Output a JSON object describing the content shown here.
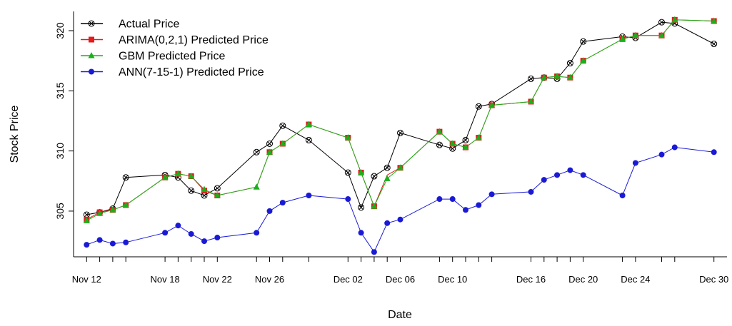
{
  "chart_data": {
    "type": "line",
    "xlabel": "Date",
    "ylabel": "Stock Price",
    "ylim": [
      301.2,
      321.6
    ],
    "xlim": [
      "2019-11-11",
      "2019-12-31"
    ],
    "y_ticks": [
      305,
      310,
      315,
      320
    ],
    "x_ticks": [
      {
        "date": "2019-11-12",
        "label": "Nov 12"
      },
      {
        "date": "2019-11-18",
        "label": "Nov 18"
      },
      {
        "date": "2019-11-22",
        "label": "Nov 22"
      },
      {
        "date": "2019-11-26",
        "label": "Nov 26"
      },
      {
        "date": "2019-12-02",
        "label": "Dec 02"
      },
      {
        "date": "2019-12-06",
        "label": "Dec 06"
      },
      {
        "date": "2019-12-10",
        "label": "Dec 10"
      },
      {
        "date": "2019-12-16",
        "label": "Dec 16"
      },
      {
        "date": "2019-12-20",
        "label": "Dec 20"
      },
      {
        "date": "2019-12-24",
        "label": "Dec 24"
      },
      {
        "date": "2019-12-30",
        "label": "Dec 30"
      }
    ],
    "x": [
      "2019-11-12",
      "2019-11-13",
      "2019-11-14",
      "2019-11-15",
      "2019-11-18",
      "2019-11-19",
      "2019-11-20",
      "2019-11-21",
      "2019-11-22",
      "2019-11-25",
      "2019-11-26",
      "2019-11-27",
      "2019-11-29",
      "2019-12-02",
      "2019-12-03",
      "2019-12-04",
      "2019-12-05",
      "2019-12-06",
      "2019-12-09",
      "2019-12-10",
      "2019-12-11",
      "2019-12-12",
      "2019-12-13",
      "2019-12-16",
      "2019-12-17",
      "2019-12-18",
      "2019-12-19",
      "2019-12-20",
      "2019-12-23",
      "2019-12-24",
      "2019-12-26",
      "2019-12-27",
      "2019-12-30"
    ],
    "series": [
      {
        "name": "Actual Price",
        "color": "#000000",
        "marker": "circle-x",
        "values": [
          304.7,
          304.9,
          305.2,
          307.8,
          308.0,
          307.8,
          306.7,
          306.3,
          306.9,
          309.9,
          310.6,
          312.1,
          310.9,
          308.2,
          305.3,
          307.9,
          308.6,
          311.5,
          310.5,
          310.2,
          310.9,
          313.7,
          313.9,
          316.0,
          316.1,
          316.0,
          317.3,
          319.1,
          319.5,
          319.4,
          320.7,
          320.6,
          318.9
        ],
        "marker_indices": [
          0,
          1,
          2,
          3,
          4,
          5,
          6,
          7,
          8,
          9,
          10,
          11,
          12,
          13,
          14,
          15,
          16,
          17,
          18,
          19,
          20,
          21,
          22,
          23,
          24,
          25,
          26,
          27,
          28,
          29,
          30,
          31,
          32
        ]
      },
      {
        "name": "ARIMA(0,2,1) Predicted Price",
        "color": "#e41a1c",
        "marker": "square",
        "values": [
          304.3,
          304.9,
          305.1,
          305.5,
          307.8,
          308.1,
          307.9,
          306.7,
          306.3,
          307.0,
          309.9,
          310.6,
          312.2,
          311.1,
          308.2,
          305.4,
          308.0,
          308.6,
          311.6,
          310.6,
          310.3,
          311.1,
          313.8,
          314.1,
          316.1,
          316.2,
          316.1,
          317.5,
          319.3,
          319.6,
          319.6,
          320.9,
          320.8
        ],
        "marker_indices": [
          0,
          1,
          2,
          3,
          4,
          5,
          6,
          7,
          8,
          10,
          11,
          12,
          13,
          14,
          15,
          17,
          18,
          19,
          20,
          21,
          22,
          23,
          24,
          25,
          26,
          27,
          28,
          29,
          30,
          31,
          32
        ]
      },
      {
        "name": "GBM Predicted Price",
        "color": "#1ab01a",
        "marker": "triangle",
        "values": [
          304.2,
          304.8,
          305.1,
          305.5,
          307.8,
          308.1,
          307.9,
          306.8,
          306.3,
          307.0,
          309.9,
          310.6,
          312.2,
          311.1,
          308.2,
          305.4,
          307.7,
          308.6,
          311.6,
          310.6,
          310.3,
          311.1,
          313.8,
          314.1,
          316.1,
          316.2,
          316.1,
          317.5,
          319.3,
          319.6,
          319.6,
          320.9,
          320.8
        ],
        "marker_indices": [
          0,
          1,
          2,
          3,
          4,
          5,
          6,
          7,
          8,
          9,
          10,
          11,
          12,
          13,
          14,
          15,
          16,
          17,
          18,
          19,
          20,
          21,
          22,
          23,
          24,
          25,
          26,
          27,
          28,
          29,
          30,
          31,
          32
        ]
      },
      {
        "name": "ANN(7-15-1) Predicted Price",
        "color": "#1a1ad6",
        "marker": "circle",
        "values": [
          302.2,
          302.6,
          302.3,
          302.4,
          303.2,
          303.8,
          303.1,
          302.5,
          302.8,
          303.2,
          305.0,
          305.7,
          306.3,
          306.0,
          303.2,
          301.6,
          304.0,
          304.3,
          306.0,
          306.0,
          305.1,
          305.5,
          306.4,
          306.6,
          307.6,
          308.0,
          308.4,
          308.0,
          306.3,
          309.0,
          309.7,
          310.3,
          309.9
        ],
        "marker_indices": [
          0,
          1,
          2,
          3,
          4,
          5,
          6,
          7,
          8,
          9,
          10,
          11,
          12,
          13,
          14,
          15,
          16,
          17,
          18,
          19,
          20,
          21,
          22,
          23,
          24,
          25,
          26,
          27,
          28,
          29,
          30,
          31,
          32
        ]
      }
    ],
    "legend": "top-left",
    "grid": false
  }
}
